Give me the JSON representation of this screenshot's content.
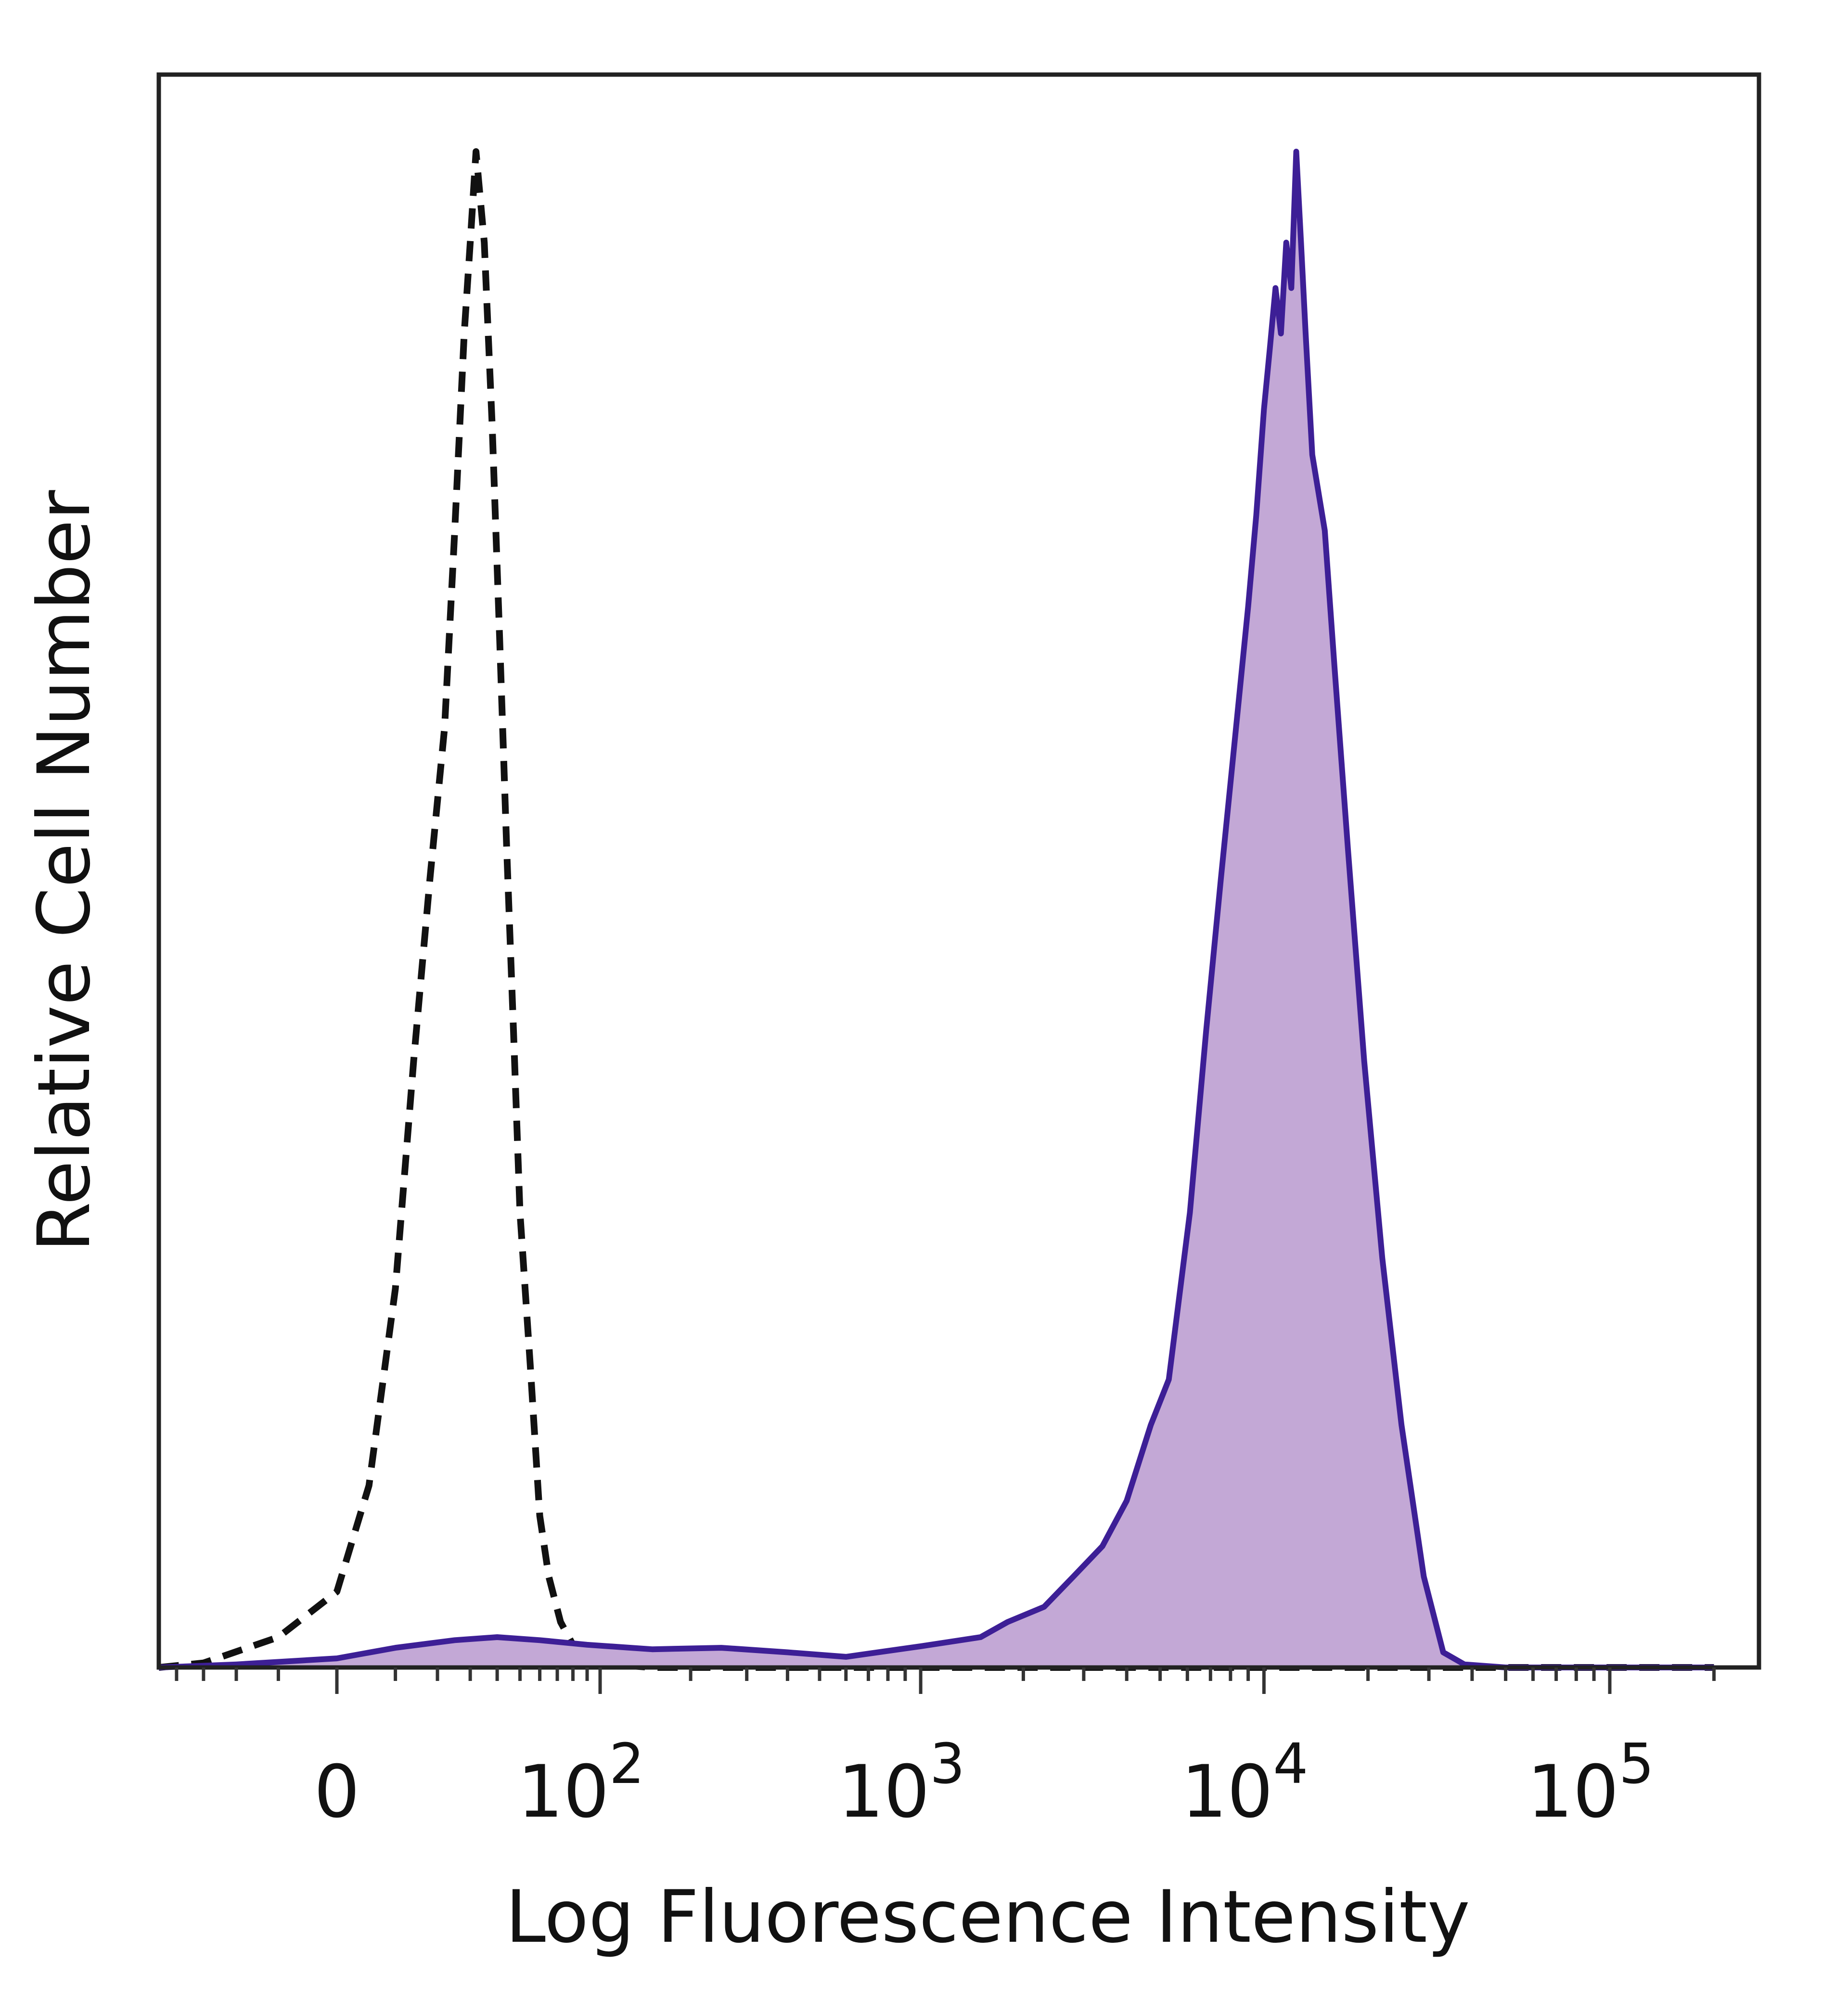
{
  "chart_data": {
    "type": "area",
    "title": "",
    "xlabel": "Log Fluorescence Intensity",
    "ylabel": "Relative Cell Number",
    "x_scale": "biexponential",
    "xlim": [
      -60,
      200000
    ],
    "ylim": [
      0,
      100
    ],
    "grid": false,
    "legend": "none",
    "x_tick_labels": [
      {
        "value": 0,
        "label": "0"
      },
      {
        "value": 100,
        "base": "10",
        "exp": "2"
      },
      {
        "value": 1000,
        "base": "10",
        "exp": "3"
      },
      {
        "value": 10000,
        "base": "10",
        "exp": "4"
      },
      {
        "value": 100000,
        "base": "10",
        "exp": "5"
      }
    ],
    "series": [
      {
        "style": "dashed",
        "color": "#111111",
        "fill": "none",
        "points": [
          [
            -60,
            0
          ],
          [
            -30,
            0.3
          ],
          [
            -10,
            2
          ],
          [
            0,
            5
          ],
          [
            5,
            12
          ],
          [
            10,
            25
          ],
          [
            14,
            40
          ],
          [
            18,
            52
          ],
          [
            22,
            62
          ],
          [
            25,
            75
          ],
          [
            28,
            88
          ],
          [
            30,
            94
          ],
          [
            32,
            100
          ],
          [
            35,
            94
          ],
          [
            38,
            82
          ],
          [
            41,
            68
          ],
          [
            44,
            54
          ],
          [
            47,
            42
          ],
          [
            50,
            30
          ],
          [
            55,
            20
          ],
          [
            60,
            10
          ],
          [
            65,
            6
          ],
          [
            72,
            3
          ],
          [
            80,
            1.5
          ],
          [
            90,
            0.5
          ],
          [
            110,
            0.2
          ],
          [
            150,
            0
          ],
          [
            1000,
            0
          ],
          [
            10000,
            0
          ],
          [
            200000,
            0
          ]
        ]
      },
      {
        "style": "solid",
        "color": "#3d1f96",
        "fill": "#c3a8d6",
        "points": [
          [
            -60,
            0
          ],
          [
            -20,
            0.2
          ],
          [
            0,
            0.6
          ],
          [
            10,
            1.3
          ],
          [
            25,
            1.8
          ],
          [
            40,
            2.0
          ],
          [
            60,
            1.8
          ],
          [
            90,
            1.5
          ],
          [
            150,
            1.2
          ],
          [
            250,
            1.3
          ],
          [
            400,
            1.0
          ],
          [
            600,
            0.7
          ],
          [
            1000,
            1.4
          ],
          [
            1500,
            2.0
          ],
          [
            1800,
            3.0
          ],
          [
            2300,
            4.0
          ],
          [
            2800,
            6.0
          ],
          [
            3400,
            8.0
          ],
          [
            4000,
            11.0
          ],
          [
            4700,
            16.0
          ],
          [
            5300,
            19.0
          ],
          [
            6100,
            30.0
          ],
          [
            6800,
            42.0
          ],
          [
            7500,
            52.0
          ],
          [
            8300,
            62.0
          ],
          [
            9000,
            70.0
          ],
          [
            9500,
            76.0
          ],
          [
            10000,
            83.0
          ],
          [
            10400,
            87.0
          ],
          [
            10800,
            91.0
          ],
          [
            11200,
            88.0
          ],
          [
            11600,
            94.0
          ],
          [
            12000,
            91.0
          ],
          [
            12400,
            100.0
          ],
          [
            12800,
            94.0
          ],
          [
            13200,
            88.0
          ],
          [
            13800,
            80.0
          ],
          [
            15000,
            75.0
          ],
          [
            16000,
            66.0
          ],
          [
            17500,
            54.0
          ],
          [
            19500,
            40.0
          ],
          [
            22000,
            27.0
          ],
          [
            25000,
            16.0
          ],
          [
            29000,
            6.0
          ],
          [
            33000,
            1.0
          ],
          [
            38000,
            0.2
          ],
          [
            50000,
            0
          ],
          [
            100000,
            0
          ],
          [
            200000,
            0
          ]
        ]
      }
    ]
  }
}
